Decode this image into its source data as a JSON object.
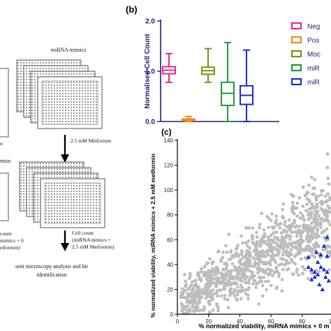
{
  "colors": {
    "navy": "#1f1b7a",
    "magenta": "#e8288c",
    "orange": "#f28a1e",
    "olive": "#8a8a12",
    "green": "#1f9a3a",
    "blue": "#1b2bd0",
    "grey_points": "#bdbdbd",
    "highlight_points": "#1b2bc9"
  },
  "panel_a": {
    "mimics_label": "miRNA mimics",
    "left_label_1": "rmin",
    "metformin_label": "2.5 mM Metformin",
    "left_cut_1": "count",
    "left_cut_2": "mimics + 0",
    "left_cut_3": "etformin)",
    "cell_count_1": "Cell count",
    "cell_count_2": "(miRNA mimics +",
    "cell_count_3": "2.5 mM Metformin)",
    "footer_1": "sent microscopy analysis and hit",
    "footer_2": "identification"
  },
  "chart_data": [
    {
      "panel_label": "(b)",
      "type": "box",
      "ylabel": "Normalised Cell Count",
      "yticks": [
        "0.0",
        "1.0",
        "2.0"
      ],
      "ylim": [
        0,
        2.0
      ],
      "legend_placement": "right",
      "legend": [
        "Neg",
        "Pos",
        "Moc",
        "miR",
        "miR"
      ],
      "series": [
        {
          "color_key": "magenta",
          "min": 0.78,
          "q1": 0.95,
          "median": 1.02,
          "q3": 1.09,
          "max": 1.35
        },
        {
          "color_key": "orange",
          "min": 0.0,
          "q1": 0.02,
          "median": 0.04,
          "q3": 0.05,
          "max": 0.1
        },
        {
          "color_key": "olive",
          "min": 0.78,
          "q1": 0.94,
          "median": 1.01,
          "q3": 1.08,
          "max": 1.45
        },
        {
          "color_key": "green",
          "min": 0.0,
          "q1": 0.32,
          "median": 0.56,
          "q3": 0.78,
          "max": 1.57
        },
        {
          "color_key": "blue",
          "min": 0.0,
          "q1": 0.34,
          "median": 0.52,
          "q3": 0.71,
          "max": 1.42
        }
      ]
    },
    {
      "panel_label": "(c)",
      "type": "scatter",
      "xlabel": "% normalized viability, miRNA mimics + 0 m",
      "ylabel": "% normalized viability, miRNA mimics + 2.5 mM metformin",
      "xlim": [
        0,
        120
      ],
      "ylim": [
        0,
        140
      ],
      "xticks": [
        "0",
        "20",
        "40",
        "60",
        "80",
        "100"
      ],
      "yticks": [
        "0",
        "20",
        "40",
        "60",
        "80",
        "100",
        "120",
        "140"
      ],
      "grey_trend": {
        "x_start": 2,
        "x_end": 118,
        "slope": 0.72,
        "intercept": 8,
        "spread": 14,
        "count": 1300
      },
      "highlight_marker": "triangle",
      "highlight_points": [
        [
          88,
          30
        ],
        [
          90,
          42
        ],
        [
          92,
          38
        ],
        [
          94,
          55
        ],
        [
          96,
          47
        ],
        [
          98,
          60
        ],
        [
          100,
          52
        ],
        [
          102,
          66
        ],
        [
          104,
          58
        ],
        [
          106,
          72
        ],
        [
          108,
          63
        ],
        [
          110,
          74
        ],
        [
          112,
          68
        ],
        [
          114,
          80
        ],
        [
          116,
          76
        ],
        [
          88,
          34
        ],
        [
          91,
          24
        ],
        [
          93,
          20
        ],
        [
          95,
          30
        ],
        [
          97,
          27
        ],
        [
          99,
          18
        ],
        [
          101,
          35
        ],
        [
          103,
          41
        ],
        [
          105,
          29
        ],
        [
          107,
          45
        ],
        [
          109,
          52
        ],
        [
          111,
          58
        ],
        [
          113,
          62
        ],
        [
          115,
          66
        ],
        [
          117,
          70
        ],
        [
          84,
          46
        ],
        [
          86,
          36
        ],
        [
          89,
          50
        ],
        [
          96,
          62
        ],
        [
          100,
          28
        ],
        [
          104,
          48
        ],
        [
          108,
          38
        ],
        [
          110,
          50
        ],
        [
          112,
          55
        ],
        [
          114,
          60
        ],
        [
          118,
          84
        ],
        [
          116,
          86
        ],
        [
          106,
          56
        ],
        [
          102,
          44
        ],
        [
          98,
          40
        ],
        [
          94,
          36
        ],
        [
          92,
          48
        ],
        [
          100,
          45
        ],
        [
          110,
          66
        ],
        [
          114,
          72
        ],
        [
          118,
          78
        ],
        [
          120,
          90
        ],
        [
          119,
          96
        ],
        [
          117,
          92
        ],
        [
          86,
          28
        ],
        [
          84,
          38
        ],
        [
          90,
          32
        ],
        [
          96,
          34
        ],
        [
          104,
          34
        ],
        [
          108,
          42
        ]
      ]
    }
  ]
}
